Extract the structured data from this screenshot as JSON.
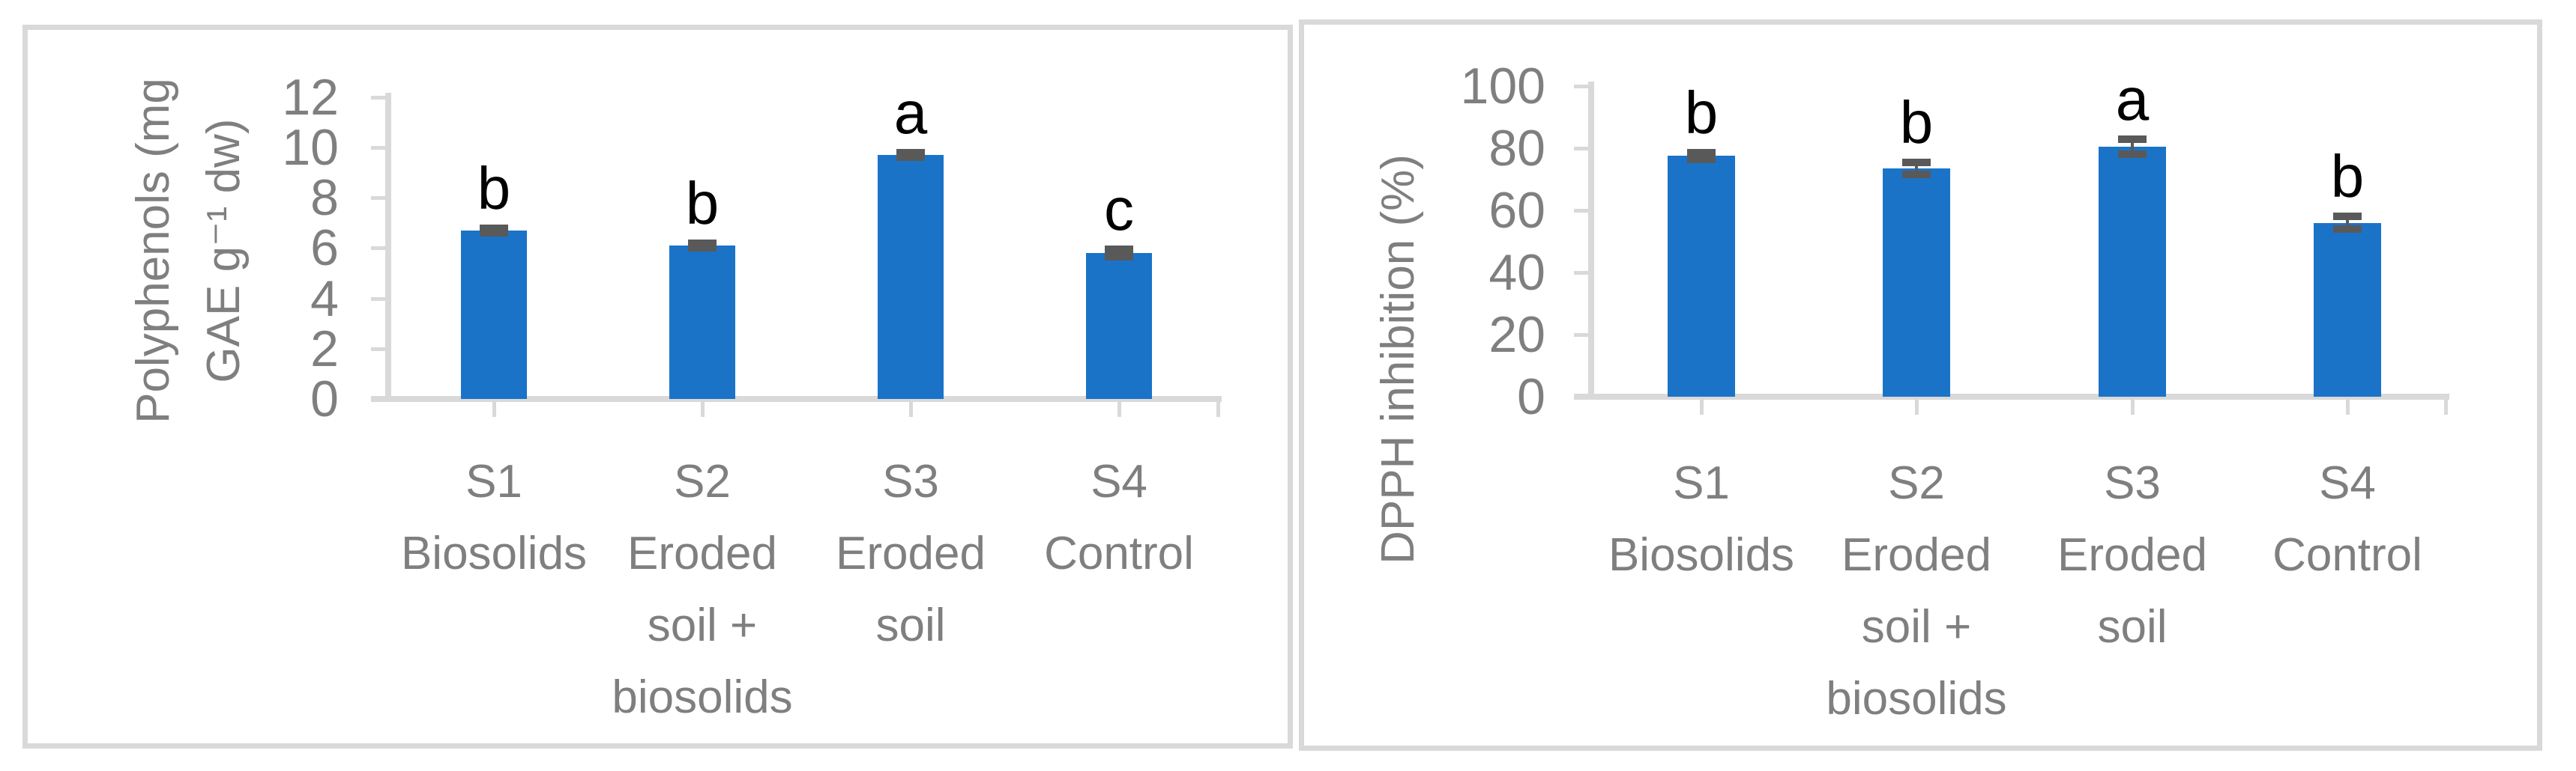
{
  "figure": {
    "description": "Two-panel bar figure comparing soil treatments",
    "left_panel_title": "",
    "right_panel_title": ""
  },
  "styles": {
    "bar_color": "#1b73c8",
    "error_bar_color": "#595959",
    "axis_color": "#d9d9d9",
    "panel_border_color": "#d9d9d9",
    "tick_text_color": "#7f7f7f",
    "letter_color": "#000000"
  },
  "chart_data": [
    {
      "type": "bar",
      "title": "",
      "xlabel": "",
      "ylabel": "Polyphenols (mg GAE g⁻¹ dw)",
      "ylabel_display": "Polyphenols (mg\nGAE g⁻¹ dw)",
      "ylim": [
        0,
        12
      ],
      "yticks": [
        0,
        2,
        4,
        6,
        8,
        10,
        12
      ],
      "grid": false,
      "legend": false,
      "categories": [
        "S1 Biosolids",
        "S2 Eroded soil + biosolids",
        "S3 Eroded soil",
        "S4 Control"
      ],
      "categories_display": [
        "S1\nBiosolids",
        "S2\nEroded\nsoil +\nbiosolids",
        "S3\nEroded\nsoil",
        "S4\nControl"
      ],
      "values": [
        6.7,
        6.1,
        9.7,
        5.8
      ],
      "errors": [
        0.1,
        0.1,
        0.1,
        0.15
      ],
      "sig_letters": [
        "b",
        "b",
        "a",
        "c"
      ]
    },
    {
      "type": "bar",
      "title": "",
      "xlabel": "",
      "ylabel": "DPPH inhibition (%)",
      "ylabel_display": "DPPH inhibition (%)",
      "ylim": [
        0,
        100
      ],
      "yticks": [
        0,
        20,
        40,
        60,
        80,
        100
      ],
      "grid": false,
      "legend": false,
      "categories": [
        "S1 Biosolids",
        "S2 Eroded soil + biosolids",
        "S3 Eroded soil",
        "S4 Control"
      ],
      "categories_display": [
        "S1\nBiosolids",
        "S2\nEroded\nsoil +\nbiosolids",
        "S3\nEroded\nsoil",
        "S4\nControl"
      ],
      "values": [
        77.5,
        73.5,
        80.5,
        56
      ],
      "errors": [
        1,
        2,
        2.5,
        2
      ],
      "sig_letters": [
        "b",
        "b",
        "a",
        "b"
      ]
    }
  ]
}
